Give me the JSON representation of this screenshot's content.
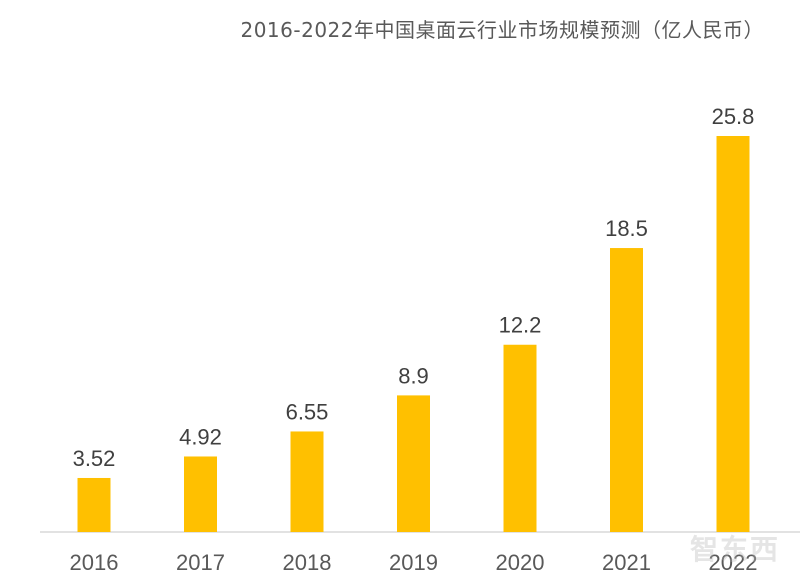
{
  "chart_data": {
    "type": "bar",
    "title": "2016-2022年中国桌面云行业市场规模预测（亿人民币）",
    "categories": [
      "2016",
      "2017",
      "2018",
      "2019",
      "2020",
      "2021",
      "2022"
    ],
    "values": [
      3.52,
      4.92,
      6.55,
      8.9,
      12.2,
      18.5,
      25.8
    ],
    "data_labels": [
      "3.52",
      "4.92",
      "6.55",
      "8.9",
      "12.2",
      "18.5",
      "25.8"
    ],
    "xlabel": "",
    "ylabel": "",
    "ylim": [
      0,
      25.8
    ],
    "grid": false,
    "bar_color": "#FFC000"
  },
  "watermark": "智东西"
}
